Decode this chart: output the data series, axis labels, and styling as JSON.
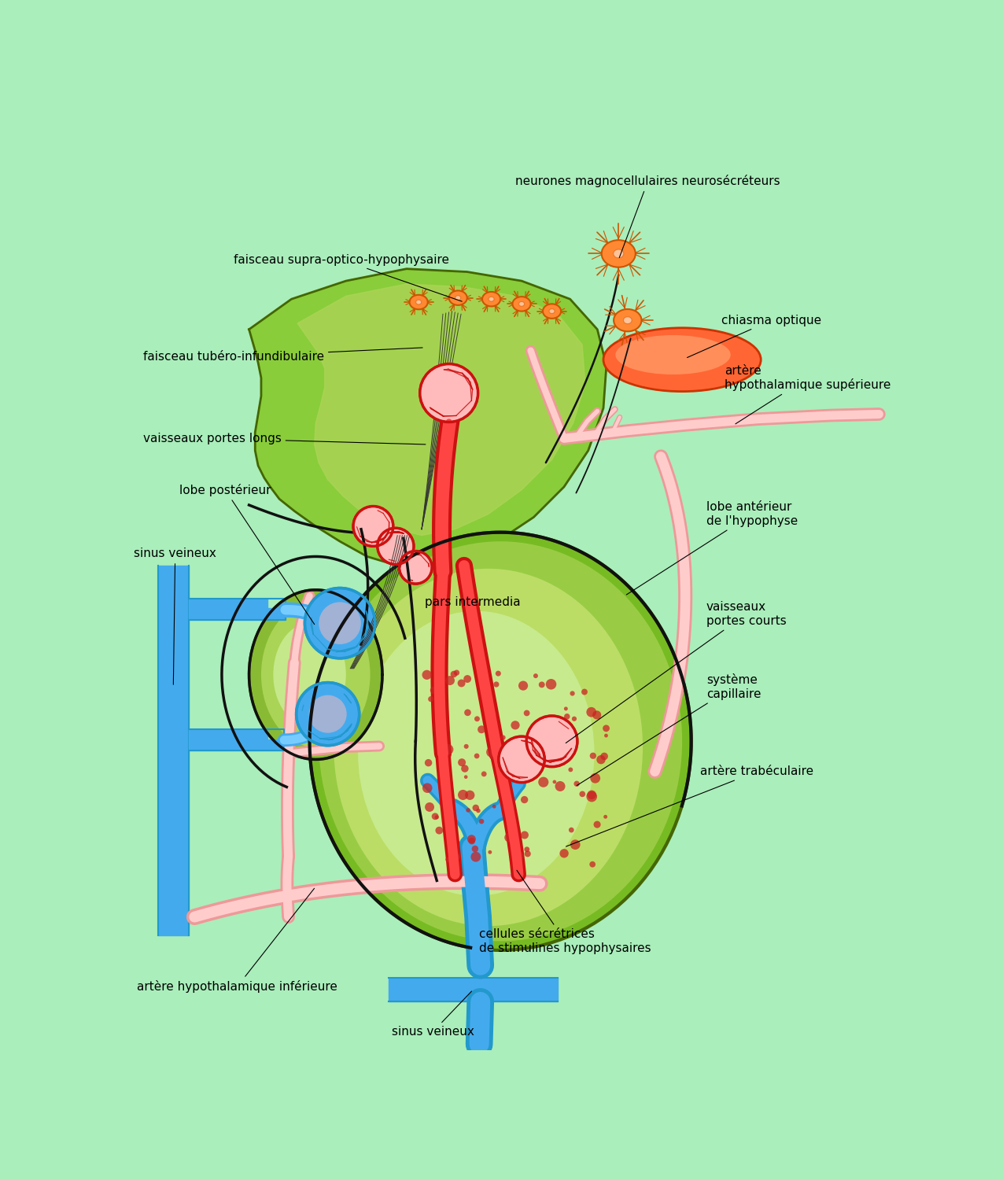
{
  "bg": "#aaeebb",
  "labels": {
    "neurones_magno": "neurones magnocellulaires neurosécréteurs",
    "faisceau_supra": "faisceau supra-optico-hypophysaire",
    "faisceau_tubero": "faisceau tubéro-infundibulaire",
    "vaisseaux_longs": "vaisseaux portes longs",
    "lobe_posterieur": "lobe postérieur",
    "sinus_left": "sinus veineux",
    "chiasma": "chiasma optique",
    "artere_sup": "artère\nhypothalamique supérieure",
    "lobe_anterieur": "lobe antérieur\nde l'hypophyse",
    "vaisseaux_courts": "vaisseaux\nportes courts",
    "systeme_cap": "système\ncapillaire",
    "artere_trabec": "artère trabéculaire",
    "pars_intermedia": "pars intermedia",
    "cellules": "cellules sécrétrices\nde stimulines hypophysaires",
    "artere_inf": "artère hypothalamique inférieure",
    "sinus_bottom": "sinus veineux"
  },
  "c": {
    "bg": "#aaeebb",
    "green1": "#66bb22",
    "green2": "#88cc33",
    "green3": "#aad455",
    "green4": "#ccee88",
    "green5": "#bbdd66",
    "red_dark": "#cc1111",
    "red_mid": "#dd2222",
    "red_bright": "#ff4444",
    "pink_dark": "#ee9999",
    "pink_mid": "#ffaaaa",
    "pink_light": "#ffcccc",
    "blue_dark": "#2299cc",
    "blue_mid": "#44aaee",
    "blue_light": "#77ccff",
    "orange": "#ff8833",
    "orange_dark": "#cc5500",
    "chiasma": "#ff6633",
    "chiasma_light": "#ffaa77",
    "black": "#111111",
    "darkgray": "#333333"
  },
  "fs": 11
}
